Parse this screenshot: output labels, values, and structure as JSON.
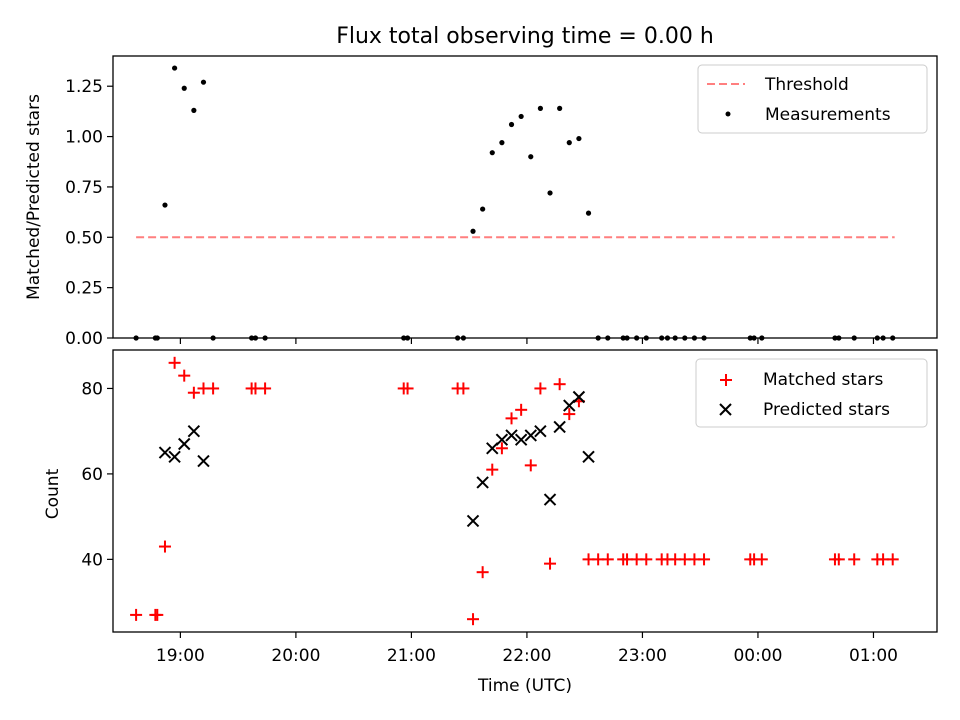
{
  "chart_data": {
    "type": "scatter",
    "title": "Flux total observing time = 0.00 h",
    "xlabel": "Time (UTC)",
    "xlim": [
      "18:25",
      "01:33"
    ],
    "xticks": [
      "19:00",
      "20:00",
      "21:00",
      "22:00",
      "23:00",
      "00:00",
      "01:00"
    ],
    "panels": [
      {
        "ylabel": "Matched/Predicted stars",
        "ylim": [
          0,
          1.4
        ],
        "yticks": [
          "0.00",
          "0.25",
          "0.50",
          "0.75",
          "1.00",
          "1.25"
        ],
        "legend_position": "top-right",
        "series": [
          {
            "name": "Threshold",
            "kind": "dashed-line",
            "color": "#ff7f7f",
            "x": [
              "18:37",
              "01:11"
            ],
            "y": [
              0.5,
              0.5
            ]
          },
          {
            "name": "Measurements",
            "kind": "dot",
            "color": "#000000",
            "points": [
              [
                "18:37",
                0.0
              ],
              [
                "18:47",
                0.0
              ],
              [
                "18:48",
                0.0
              ],
              [
                "18:52",
                0.66
              ],
              [
                "18:57",
                1.34
              ],
              [
                "19:02",
                1.24
              ],
              [
                "19:07",
                1.13
              ],
              [
                "19:12",
                1.27
              ],
              [
                "19:17",
                0.0
              ],
              [
                "19:37",
                0.0
              ],
              [
                "19:39",
                0.0
              ],
              [
                "19:44",
                0.0
              ],
              [
                "20:56",
                0.0
              ],
              [
                "20:58",
                0.0
              ],
              [
                "21:24",
                0.0
              ],
              [
                "21:27",
                0.0
              ],
              [
                "21:32",
                0.53
              ],
              [
                "21:37",
                0.64
              ],
              [
                "21:42",
                0.92
              ],
              [
                "21:47",
                0.97
              ],
              [
                "21:52",
                1.06
              ],
              [
                "21:57",
                1.1
              ],
              [
                "22:02",
                0.9
              ],
              [
                "22:07",
                1.14
              ],
              [
                "22:12",
                0.72
              ],
              [
                "22:17",
                1.14
              ],
              [
                "22:22",
                0.97
              ],
              [
                "22:27",
                0.99
              ],
              [
                "22:32",
                0.62
              ],
              [
                "22:37",
                0.0
              ],
              [
                "22:42",
                0.0
              ],
              [
                "22:50",
                0.0
              ],
              [
                "22:52",
                0.0
              ],
              [
                "22:57",
                0.0
              ],
              [
                "23:02",
                0.0
              ],
              [
                "23:10",
                0.0
              ],
              [
                "23:13",
                0.0
              ],
              [
                "23:17",
                0.0
              ],
              [
                "23:22",
                0.0
              ],
              [
                "23:27",
                0.0
              ],
              [
                "23:32",
                0.0
              ],
              [
                "23:56",
                0.0
              ],
              [
                "23:58",
                0.0
              ],
              [
                "00:02",
                0.0
              ],
              [
                "00:40",
                0.0
              ],
              [
                "00:42",
                0.0
              ],
              [
                "00:50",
                0.0
              ],
              [
                "01:02",
                0.0
              ],
              [
                "01:05",
                0.0
              ],
              [
                "01:10",
                0.0
              ]
            ]
          }
        ]
      },
      {
        "ylabel": "Count",
        "ylim": [
          23,
          89
        ],
        "yticks": [
          "40",
          "60",
          "80"
        ],
        "legend_position": "top-right",
        "series": [
          {
            "name": "Matched stars",
            "kind": "plus",
            "color": "#ff0000",
            "points": [
              [
                "18:37",
                27
              ],
              [
                "18:47",
                27
              ],
              [
                "18:48",
                27
              ],
              [
                "18:52",
                43
              ],
              [
                "18:57",
                86
              ],
              [
                "19:02",
                83
              ],
              [
                "19:07",
                79
              ],
              [
                "19:12",
                80
              ],
              [
                "19:17",
                80
              ],
              [
                "19:37",
                80
              ],
              [
                "19:39",
                80
              ],
              [
                "19:44",
                80
              ],
              [
                "20:56",
                80
              ],
              [
                "20:58",
                80
              ],
              [
                "21:24",
                80
              ],
              [
                "21:27",
                80
              ],
              [
                "21:32",
                26
              ],
              [
                "21:37",
                37
              ],
              [
                "21:42",
                61
              ],
              [
                "21:47",
                66
              ],
              [
                "21:52",
                73
              ],
              [
                "21:57",
                75
              ],
              [
                "22:02",
                62
              ],
              [
                "22:07",
                80
              ],
              [
                "22:12",
                39
              ],
              [
                "22:17",
                81
              ],
              [
                "22:22",
                74
              ],
              [
                "22:27",
                77
              ],
              [
                "22:32",
                40
              ],
              [
                "22:37",
                40
              ],
              [
                "22:42",
                40
              ],
              [
                "22:50",
                40
              ],
              [
                "22:52",
                40
              ],
              [
                "22:57",
                40
              ],
              [
                "23:02",
                40
              ],
              [
                "23:10",
                40
              ],
              [
                "23:13",
                40
              ],
              [
                "23:17",
                40
              ],
              [
                "23:22",
                40
              ],
              [
                "23:27",
                40
              ],
              [
                "23:32",
                40
              ],
              [
                "23:56",
                40
              ],
              [
                "23:58",
                40
              ],
              [
                "00:02",
                40
              ],
              [
                "00:40",
                40
              ],
              [
                "00:42",
                40
              ],
              [
                "00:50",
                40
              ],
              [
                "01:02",
                40
              ],
              [
                "01:05",
                40
              ],
              [
                "01:10",
                40
              ]
            ]
          },
          {
            "name": "Predicted stars",
            "kind": "x",
            "color": "#000000",
            "points": [
              [
                "18:52",
                65
              ],
              [
                "18:57",
                64
              ],
              [
                "19:02",
                67
              ],
              [
                "19:07",
                70
              ],
              [
                "19:12",
                63
              ],
              [
                "21:32",
                49
              ],
              [
                "21:37",
                58
              ],
              [
                "21:42",
                66
              ],
              [
                "21:47",
                68
              ],
              [
                "21:52",
                69
              ],
              [
                "21:57",
                68
              ],
              [
                "22:02",
                69
              ],
              [
                "22:07",
                70
              ],
              [
                "22:12",
                54
              ],
              [
                "22:17",
                71
              ],
              [
                "22:22",
                76
              ],
              [
                "22:27",
                78
              ],
              [
                "22:32",
                64
              ]
            ]
          }
        ]
      }
    ]
  }
}
